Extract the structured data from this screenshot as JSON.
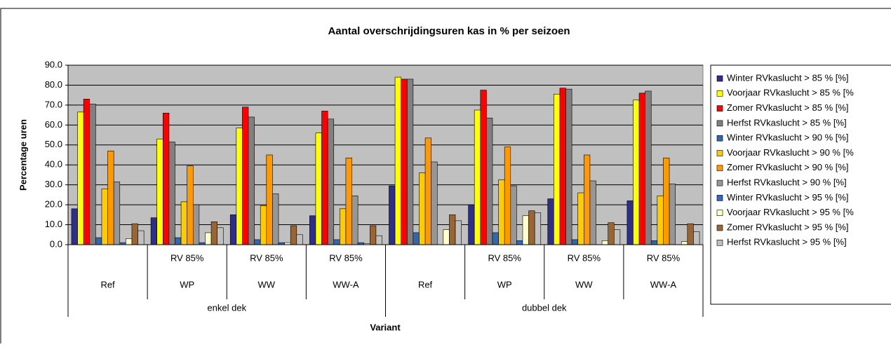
{
  "chart_data": {
    "type": "bar",
    "title": "Aantal overschrijdingsuren kas in % per seizoen",
    "y_label": "Percentage uren",
    "x_label": "Variant",
    "categories": [
      "Ref",
      "WP",
      "WW",
      "WW-A",
      "Ref",
      "WP",
      "WW",
      "WW-A"
    ],
    "sublabels": [
      null,
      "RV 85%",
      "RV 85%",
      "RV 85%",
      null,
      "RV 85%",
      "RV 85%",
      "RV 85%"
    ],
    "groups": [
      "enkel dek",
      "dubbel dek"
    ],
    "ylim": [
      0,
      90
    ],
    "yticks": [
      {
        "value": 0,
        "label": "0.0"
      },
      {
        "value": 10,
        "label": "10.0"
      },
      {
        "value": 20,
        "label": "20.0"
      },
      {
        "value": 30,
        "label": "30.0"
      },
      {
        "value": 40,
        "label": "40.0"
      },
      {
        "value": 50,
        "label": "50.0"
      },
      {
        "value": 60,
        "label": "60.0"
      },
      {
        "value": 70,
        "label": "70.0"
      },
      {
        "value": 80,
        "label": "80.0"
      },
      {
        "value": 90,
        "label": "90.0"
      }
    ],
    "grid": true,
    "legend": "right",
    "series": [
      {
        "name": "Winter RVkaslucht > 85 % [%]",
        "color": "#2e2e8c",
        "values": [
          18,
          13.5,
          15,
          14.5,
          29.5,
          20,
          23,
          22
        ]
      },
      {
        "name": "Voorjaar RVkaslucht > 85 % [%",
        "color": "#ffff00",
        "values": [
          66.5,
          53,
          58.5,
          56,
          84,
          67.5,
          75.5,
          72.5
        ]
      },
      {
        "name": "Zomer RVkaslucht > 85 % [%]",
        "color": "#ff0000",
        "values": [
          73,
          66,
          69,
          67,
          83,
          77.5,
          78.5,
          76
        ]
      },
      {
        "name": "Herfst RVkaslucht > 85 % [%]",
        "color": "#808080",
        "values": [
          70.5,
          51.5,
          64,
          63,
          83,
          63.5,
          78,
          77
        ]
      },
      {
        "name": "Winter RVkaslucht > 90 % [%]",
        "color": "#3366aa",
        "values": [
          3.5,
          3.5,
          2.5,
          2.5,
          6,
          6,
          2.5,
          2
        ]
      },
      {
        "name": "Voorjaar RVkaslucht > 90 % [%",
        "color": "#ffcc00",
        "values": [
          28,
          21.5,
          19.5,
          18,
          36,
          32.5,
          26,
          24.5
        ]
      },
      {
        "name": "Zomer RVkaslucht > 90 % [%]",
        "color": "#ff9900",
        "values": [
          47,
          39.5,
          45,
          43.5,
          53.5,
          49,
          45,
          43.5
        ]
      },
      {
        "name": "Herfst RVkaslucht > 90 % [%]",
        "color": "#969696",
        "values": [
          31.5,
          20,
          25.5,
          24.5,
          41.5,
          29.5,
          32,
          30.5
        ]
      },
      {
        "name": "Winter RVkaslucht > 95 % [%]",
        "color": "#3366cc",
        "values": [
          1,
          1,
          1,
          1,
          0,
          2,
          0,
          0
        ]
      },
      {
        "name": "Voorjaar RVkaslucht > 95 % [%",
        "color": "#ffffcc",
        "values": [
          3,
          6,
          1,
          0.5,
          7.5,
          14.5,
          2,
          1.5
        ]
      },
      {
        "name": "Zomer RVkaslucht > 95 % [%]",
        "color": "#996633",
        "values": [
          10.5,
          11.5,
          9.5,
          9.5,
          15,
          17,
          11,
          10.5
        ]
      },
      {
        "name": "Herfst RVkaslucht > 95 % [%]",
        "color": "#c0c0c0",
        "values": [
          7,
          8.5,
          5,
          4.5,
          12,
          16,
          7.5,
          6.5
        ]
      }
    ]
  }
}
